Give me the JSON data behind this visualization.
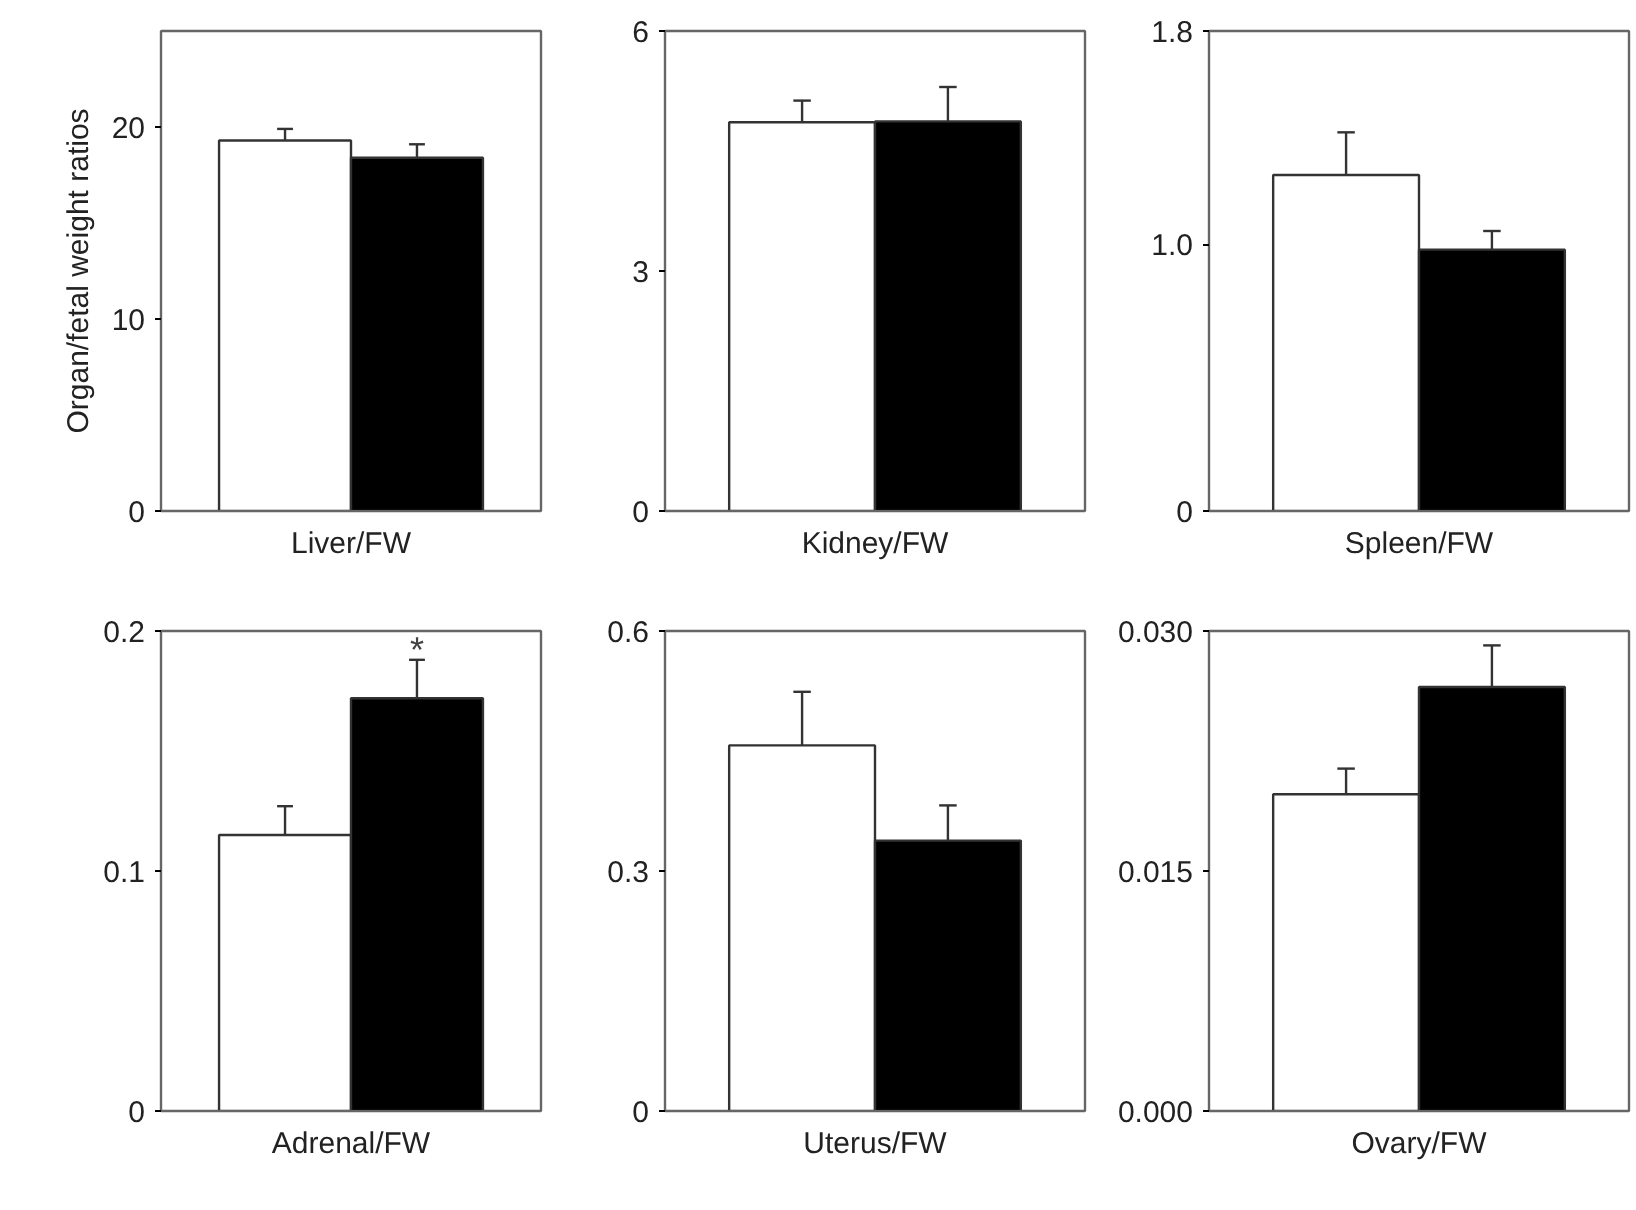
{
  "chart_data": [
    {
      "type": "bar",
      "ylabel": "Organ/fetal weight ratios",
      "xlabel": "Liver/FW",
      "categories": [
        null,
        null
      ],
      "values": [
        19.3,
        18.4
      ],
      "colors": [
        "#ffffff",
        "#000000"
      ],
      "errors": [
        [
          19.3,
          19.9
        ],
        [
          18.4,
          19.1
        ]
      ],
      "ylim": [
        0,
        25
      ],
      "yticks": [
        0,
        10,
        20
      ],
      "grid": false,
      "tick_labels": "y"
    },
    {
      "type": "bar",
      "xlabel": "Kidney/FW",
      "categories": [
        null,
        null
      ],
      "values": [
        4.86,
        4.87
      ],
      "colors": [
        "#ffffff",
        "#000000"
      ],
      "errors": [
        [
          4.86,
          5.13
        ],
        [
          4.87,
          5.3
        ]
      ],
      "ylim": [
        0,
        6
      ],
      "yticks": [
        0,
        3,
        6
      ],
      "grid": false,
      "tick_labels": "y"
    },
    {
      "type": "bar",
      "xlabel": "Spleen/FW",
      "categories": [
        null,
        null
      ],
      "values": [
        1.26,
        0.98
      ],
      "colors": [
        "#ffffff",
        "#000000"
      ],
      "errors": [
        [
          1.26,
          1.42
        ],
        [
          0.98,
          1.05
        ]
      ],
      "ylim": [
        0,
        1.8
      ],
      "yticks": [
        0,
        {
          "value": 1,
          "label": "1.0"
        },
        1.8
      ],
      "grid": false,
      "tick_labels": "y"
    },
    {
      "type": "bar",
      "xlabel": "Adrenal/FW",
      "categories": [
        null,
        null
      ],
      "values": [
        0.115,
        0.172
      ],
      "colors": [
        "#ffffff",
        "#000000"
      ],
      "errors": [
        [
          0.115,
          0.127
        ],
        [
          0.172,
          0.188
        ]
      ],
      "ylim": [
        0,
        0.2
      ],
      "yticks": [
        0,
        0.1,
        0.2
      ],
      "grid": false,
      "tick_labels": "y",
      "annotations": [
        {
          "text": "*",
          "y": 0.192
        }
      ]
    },
    {
      "type": "bar",
      "xlabel": "Uterus/FW",
      "categories": [
        null,
        null
      ],
      "values": [
        0.457,
        0.338
      ],
      "colors": [
        "#ffffff",
        "#000000"
      ],
      "errors": [
        [
          0.457,
          0.524
        ],
        [
          0.338,
          0.382
        ]
      ],
      "ylim": [
        0,
        0.6
      ],
      "yticks": [
        0,
        0.3,
        0.6
      ],
      "grid": false,
      "tick_labels": "y"
    },
    {
      "type": "bar",
      "xlabel": "Ovary/FW",
      "categories": [
        null,
        null
      ],
      "values": [
        0.0198,
        0.0265
      ],
      "colors": [
        "#ffffff",
        "#000000"
      ],
      "errors": [
        [
          0.0198,
          0.0214
        ],
        [
          0.0265,
          0.0291
        ]
      ],
      "ylim": [
        0,
        0.03
      ],
      "yticks": [
        {
          "value": 0,
          "label": "0.000"
        },
        {
          "value": 0.015,
          "label": "0.015"
        },
        {
          "value": 0.03,
          "label": "0.030"
        }
      ],
      "grid": false,
      "tick_labels": "y"
    }
  ]
}
